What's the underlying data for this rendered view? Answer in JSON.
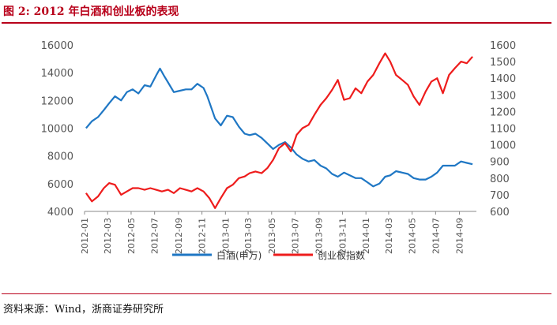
{
  "header": {
    "figure_title": "图 2: 2012 年白酒和创业板的表现"
  },
  "footer": {
    "source": "资料来源：Wind，浙商证券研究所"
  },
  "chart_data": {
    "type": "line",
    "title": "",
    "x_categories": [
      "2012-01",
      "2012-03",
      "2012-05",
      "2012-07",
      "2012-09",
      "2012-11",
      "2013-01",
      "2013-03",
      "2013-05",
      "2013-07",
      "2013-09",
      "2013-11",
      "2014-01",
      "2014-03",
      "2014-05",
      "2014-07",
      "2014-09"
    ],
    "x_range": [
      "2012-01-01",
      "2014-10-15"
    ],
    "left_axis": {
      "min": 4000,
      "max": 16000,
      "ticks": [
        4000,
        6000,
        8000,
        10000,
        12000,
        14000,
        16000
      ]
    },
    "right_axis": {
      "min": 600,
      "max": 1600,
      "ticks": [
        600,
        700,
        800,
        900,
        1000,
        1100,
        1200,
        1300,
        1400,
        1500,
        1600
      ]
    },
    "legend_position": "bottom",
    "grid": false,
    "series": [
      {
        "name": "白酒(申万)",
        "axis": "left",
        "color": "#1f77c4",
        "points": [
          [
            "2012-01-05",
            10000
          ],
          [
            "2012-01-20",
            10500
          ],
          [
            "2012-02-05",
            10800
          ],
          [
            "2012-02-20",
            11300
          ],
          [
            "2012-03-05",
            11800
          ],
          [
            "2012-03-20",
            12300
          ],
          [
            "2012-04-05",
            12000
          ],
          [
            "2012-04-20",
            12600
          ],
          [
            "2012-05-05",
            12800
          ],
          [
            "2012-05-20",
            12500
          ],
          [
            "2012-06-05",
            13100
          ],
          [
            "2012-06-20",
            13000
          ],
          [
            "2012-07-05",
            13800
          ],
          [
            "2012-07-15",
            14300
          ],
          [
            "2012-07-25",
            13800
          ],
          [
            "2012-08-05",
            13300
          ],
          [
            "2012-08-20",
            12600
          ],
          [
            "2012-09-05",
            12700
          ],
          [
            "2012-09-20",
            12800
          ],
          [
            "2012-10-05",
            12800
          ],
          [
            "2012-10-20",
            13200
          ],
          [
            "2012-11-05",
            12900
          ],
          [
            "2012-11-15",
            12300
          ],
          [
            "2012-11-25",
            11500
          ],
          [
            "2012-12-05",
            10700
          ],
          [
            "2012-12-20",
            10200
          ],
          [
            "2013-01-05",
            10900
          ],
          [
            "2013-01-20",
            10800
          ],
          [
            "2013-02-05",
            10100
          ],
          [
            "2013-02-20",
            9600
          ],
          [
            "2013-03-05",
            9500
          ],
          [
            "2013-03-20",
            9600
          ],
          [
            "2013-04-05",
            9300
          ],
          [
            "2013-04-20",
            8900
          ],
          [
            "2013-05-05",
            8500
          ],
          [
            "2013-05-20",
            8800
          ],
          [
            "2013-06-05",
            9000
          ],
          [
            "2013-06-20",
            8600
          ],
          [
            "2013-07-05",
            8100
          ],
          [
            "2013-07-20",
            7800
          ],
          [
            "2013-08-05",
            7600
          ],
          [
            "2013-08-20",
            7700
          ],
          [
            "2013-09-05",
            7300
          ],
          [
            "2013-09-20",
            7100
          ],
          [
            "2013-10-05",
            6700
          ],
          [
            "2013-10-20",
            6500
          ],
          [
            "2013-11-05",
            6800
          ],
          [
            "2013-11-20",
            6600
          ],
          [
            "2013-12-05",
            6400
          ],
          [
            "2013-12-20",
            6400
          ],
          [
            "2014-01-05",
            6100
          ],
          [
            "2014-01-20",
            5800
          ],
          [
            "2014-02-05",
            6000
          ],
          [
            "2014-02-20",
            6500
          ],
          [
            "2014-03-05",
            6600
          ],
          [
            "2014-03-20",
            6900
          ],
          [
            "2014-04-05",
            6800
          ],
          [
            "2014-04-20",
            6700
          ],
          [
            "2014-05-05",
            6400
          ],
          [
            "2014-05-20",
            6300
          ],
          [
            "2014-06-05",
            6300
          ],
          [
            "2014-06-20",
            6500
          ],
          [
            "2014-07-05",
            6800
          ],
          [
            "2014-07-20",
            7300
          ],
          [
            "2014-08-05",
            7300
          ],
          [
            "2014-08-20",
            7300
          ],
          [
            "2014-09-05",
            7600
          ],
          [
            "2014-09-20",
            7500
          ],
          [
            "2014-10-05",
            7400
          ]
        ]
      },
      {
        "name": "创业板指数",
        "axis": "right",
        "color": "#ee1c1c",
        "points": [
          [
            "2012-01-05",
            710
          ],
          [
            "2012-01-20",
            660
          ],
          [
            "2012-02-05",
            690
          ],
          [
            "2012-02-20",
            740
          ],
          [
            "2012-03-05",
            770
          ],
          [
            "2012-03-20",
            760
          ],
          [
            "2012-04-05",
            700
          ],
          [
            "2012-04-20",
            720
          ],
          [
            "2012-05-05",
            740
          ],
          [
            "2012-05-20",
            740
          ],
          [
            "2012-06-05",
            730
          ],
          [
            "2012-06-20",
            740
          ],
          [
            "2012-07-05",
            730
          ],
          [
            "2012-07-20",
            720
          ],
          [
            "2012-08-05",
            730
          ],
          [
            "2012-08-20",
            710
          ],
          [
            "2012-09-05",
            740
          ],
          [
            "2012-09-20",
            730
          ],
          [
            "2012-10-05",
            720
          ],
          [
            "2012-10-20",
            740
          ],
          [
            "2012-11-05",
            720
          ],
          [
            "2012-11-20",
            680
          ],
          [
            "2012-12-05",
            620
          ],
          [
            "2012-12-20",
            680
          ],
          [
            "2013-01-05",
            740
          ],
          [
            "2013-01-20",
            760
          ],
          [
            "2013-02-05",
            800
          ],
          [
            "2013-02-20",
            810
          ],
          [
            "2013-03-05",
            830
          ],
          [
            "2013-03-20",
            840
          ],
          [
            "2013-04-05",
            830
          ],
          [
            "2013-04-20",
            860
          ],
          [
            "2013-05-05",
            910
          ],
          [
            "2013-05-20",
            980
          ],
          [
            "2013-06-05",
            1010
          ],
          [
            "2013-06-20",
            960
          ],
          [
            "2013-07-05",
            1060
          ],
          [
            "2013-07-20",
            1100
          ],
          [
            "2013-08-05",
            1120
          ],
          [
            "2013-08-20",
            1180
          ],
          [
            "2013-09-05",
            1240
          ],
          [
            "2013-09-20",
            1280
          ],
          [
            "2013-10-05",
            1330
          ],
          [
            "2013-10-20",
            1390
          ],
          [
            "2013-11-05",
            1270
          ],
          [
            "2013-11-20",
            1280
          ],
          [
            "2013-12-05",
            1340
          ],
          [
            "2013-12-20",
            1310
          ],
          [
            "2014-01-05",
            1380
          ],
          [
            "2014-01-20",
            1420
          ],
          [
            "2014-02-05",
            1490
          ],
          [
            "2014-02-20",
            1550
          ],
          [
            "2014-03-05",
            1500
          ],
          [
            "2014-03-20",
            1420
          ],
          [
            "2014-04-05",
            1390
          ],
          [
            "2014-04-20",
            1360
          ],
          [
            "2014-05-05",
            1290
          ],
          [
            "2014-05-20",
            1240
          ],
          [
            "2014-06-05",
            1320
          ],
          [
            "2014-06-20",
            1380
          ],
          [
            "2014-07-05",
            1400
          ],
          [
            "2014-07-20",
            1310
          ],
          [
            "2014-08-05",
            1420
          ],
          [
            "2014-08-20",
            1460
          ],
          [
            "2014-09-05",
            1500
          ],
          [
            "2014-09-20",
            1490
          ],
          [
            "2014-10-05",
            1530
          ]
        ]
      }
    ]
  }
}
